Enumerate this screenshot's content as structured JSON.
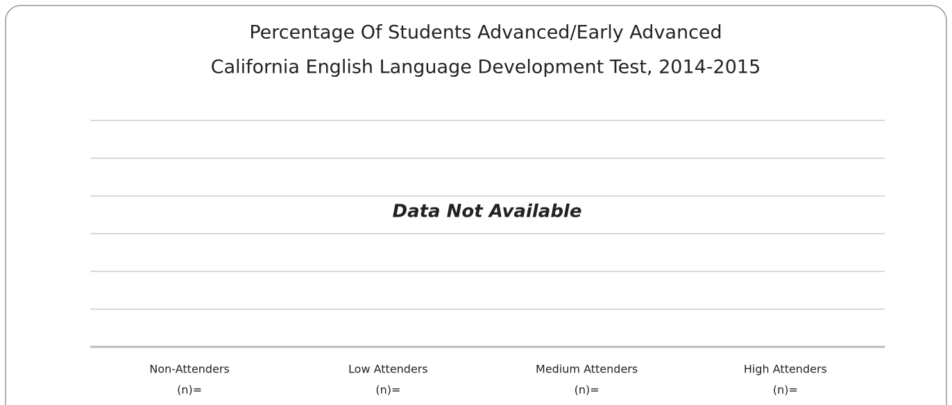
{
  "chart_data": {
    "type": "bar",
    "title": [
      "Percentage Of Students Advanced/Early Advanced",
      "California English Language Development Test, 2014-2015"
    ],
    "annotation": "Data Not Available",
    "annotation_color": "#e00000",
    "categories": [
      "Non-Attenders",
      "Low Attenders",
      "Medium Attenders",
      "High Attenders"
    ],
    "category_sublabels": [
      "(n)=",
      "(n)=",
      "(n)=",
      "(n)="
    ],
    "grid": true
  }
}
